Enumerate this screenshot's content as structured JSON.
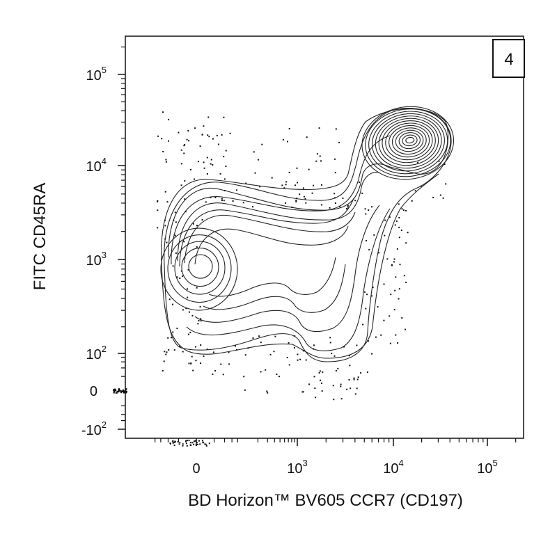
{
  "chart_data": {
    "type": "contour",
    "xlabel": "BD Horizon™ BV605 CCR7 (CD197)",
    "ylabel": "FITC CD45RA",
    "gate_number": "4",
    "x_scale": "biexponential",
    "y_scale": "biexponential",
    "xlim": [
      -300,
      200000
    ],
    "ylim": [
      -200,
      250000
    ],
    "x_ticks": [
      {
        "value": 0,
        "base": "0",
        "exp": ""
      },
      {
        "value": 1000,
        "base": "10",
        "exp": "3"
      },
      {
        "value": 10000,
        "base": "10",
        "exp": "4"
      },
      {
        "value": 100000,
        "base": "10",
        "exp": "5"
      }
    ],
    "y_ticks": [
      {
        "value": -100,
        "base": "-10",
        "exp": "2"
      },
      {
        "value": 0,
        "base": "0",
        "exp": ""
      },
      {
        "value": 100,
        "base": "10",
        "exp": "2"
      },
      {
        "value": 1000,
        "base": "10",
        "exp": "3"
      },
      {
        "value": 10000,
        "base": "10",
        "exp": "4"
      },
      {
        "value": 100000,
        "base": "10",
        "exp": "5"
      }
    ],
    "populations": [
      {
        "name": "",
        "center": [
          0,
          850
        ]
      },
      {
        "name": "",
        "center": [
          15000,
          19000
        ]
      }
    ],
    "grid": false,
    "legend": "none"
  }
}
